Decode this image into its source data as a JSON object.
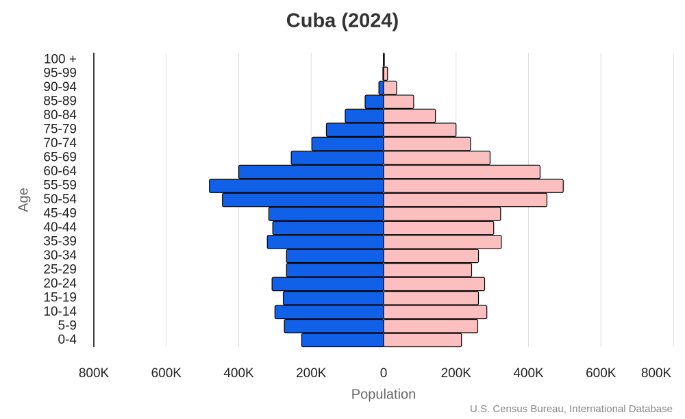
{
  "chart_data": {
    "type": "pyramid",
    "title": "Cuba (2024)",
    "x_label": "Population",
    "y_label": "Age",
    "source": "U.S. Census Bureau, International Database",
    "categories": [
      "0-4",
      "5-9",
      "10-14",
      "15-19",
      "20-24",
      "25-29",
      "30-34",
      "35-39",
      "40-44",
      "45-49",
      "50-54",
      "55-59",
      "60-64",
      "65-69",
      "70-74",
      "75-79",
      "80-84",
      "85-89",
      "90-94",
      "95-99",
      "100 +"
    ],
    "series": [
      {
        "color": "#1060e8",
        "values": [
          -226000,
          -274000,
          -300000,
          -277000,
          -308000,
          -268000,
          -268000,
          -321000,
          -306000,
          -317000,
          -445000,
          -481000,
          -400000,
          -255000,
          -198000,
          -158000,
          -106000,
          -51000,
          -13000,
          -2000,
          -500
        ]
      },
      {
        "color": "#fbbfbf",
        "values": [
          215000,
          260000,
          285000,
          262000,
          279000,
          243000,
          262000,
          325000,
          304000,
          323000,
          451000,
          496000,
          432000,
          294000,
          240000,
          200000,
          143000,
          83000,
          36000,
          11000,
          2000
        ]
      }
    ],
    "xlim": [
      -800000,
      800000
    ],
    "xticks": [
      {
        "value": -800000,
        "label": "800K"
      },
      {
        "value": -600000,
        "label": "600K"
      },
      {
        "value": -400000,
        "label": "400K"
      },
      {
        "value": -200000,
        "label": "200K"
      },
      0,
      {
        "value": 200000,
        "label": "200K"
      },
      {
        "value": 400000,
        "label": "400K"
      },
      {
        "value": 600000,
        "label": "600K"
      },
      {
        "value": 800000,
        "label": "800K"
      }
    ],
    "grid": true
  }
}
